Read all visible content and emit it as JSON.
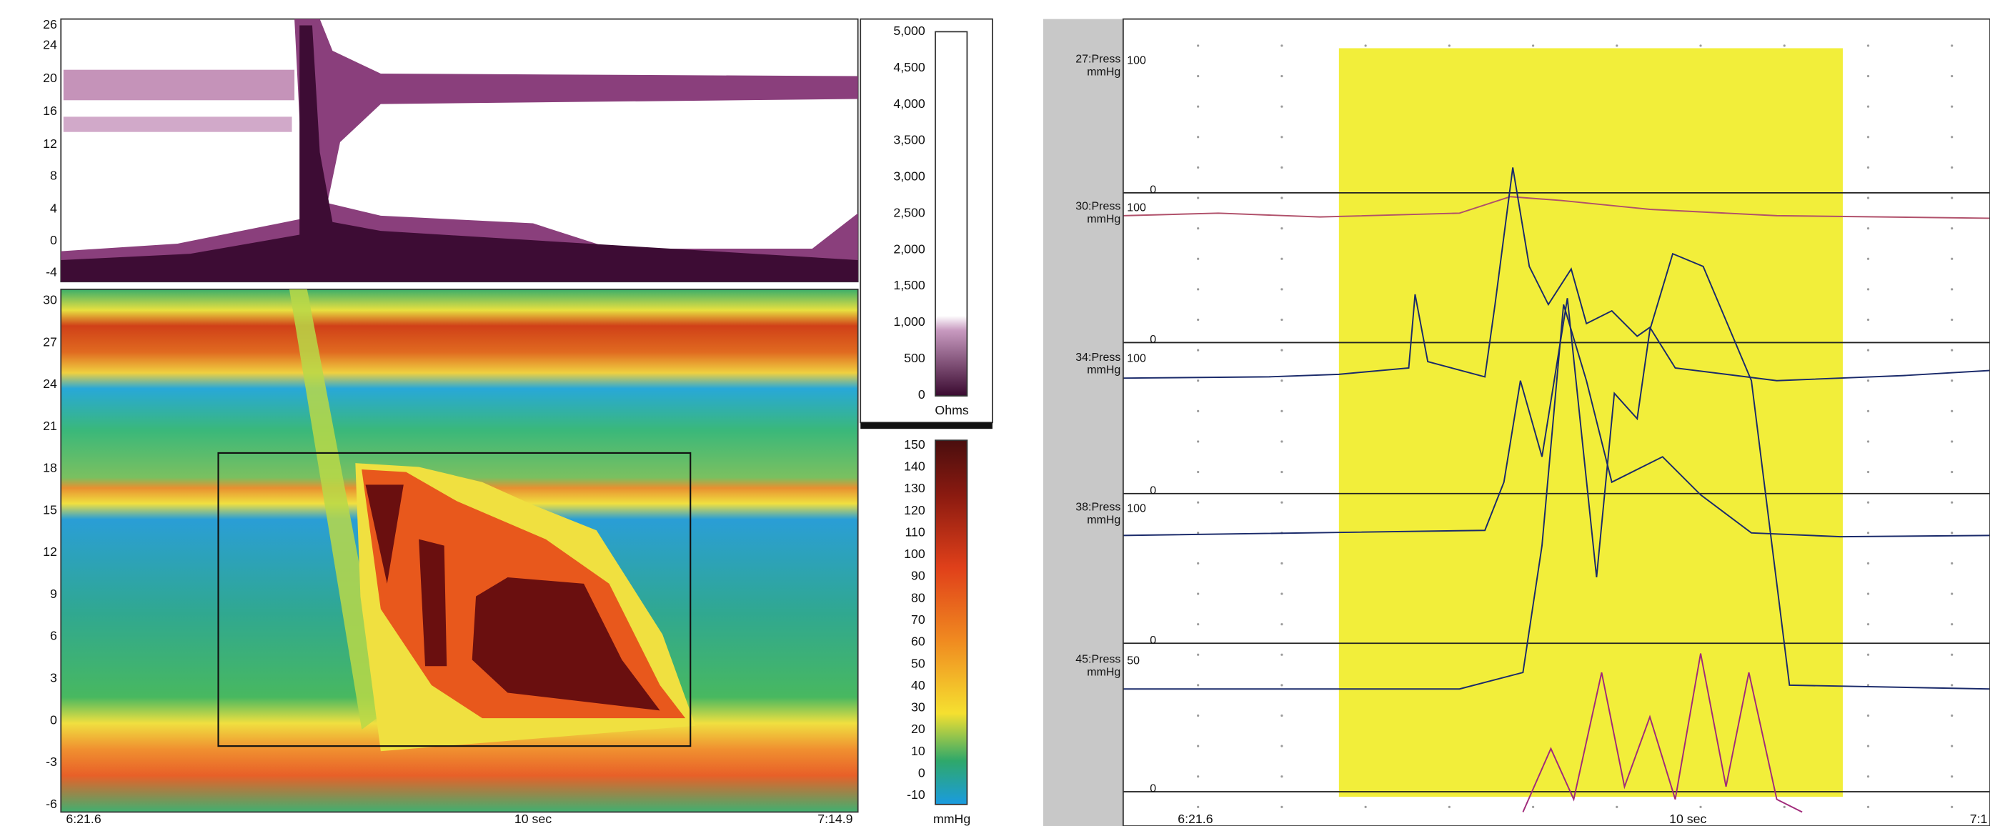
{
  "left_panel": {
    "impedance_axis": [
      "26",
      "24",
      "20",
      "16",
      "12",
      "8",
      "4",
      "0",
      "-4"
    ],
    "pressure_axis": [
      "30",
      "27",
      "24",
      "21",
      "18",
      "15",
      "12",
      "9",
      "6",
      "3",
      "0",
      "-3",
      "-6"
    ],
    "time_axis": [
      "6:21.6",
      "10 sec",
      "7:14.9"
    ]
  },
  "impedance_scale": {
    "ticks": [
      "5,000",
      "4,500",
      "4,000",
      "3,500",
      "3,000",
      "2,500",
      "2,000",
      "1,500",
      "1,000",
      "500",
      "0"
    ],
    "unit": "Ohms"
  },
  "pressure_scale": {
    "ticks": [
      "150",
      "140",
      "130",
      "120",
      "110",
      "100",
      "90",
      "80",
      "70",
      "60",
      "50",
      "40",
      "30",
      "20",
      "10",
      "0",
      "-10"
    ],
    "unit": "mmHg"
  },
  "right_panel": {
    "channels": [
      {
        "name": "27:Press",
        "unit": "mmHg",
        "top": "100",
        "zero": "0"
      },
      {
        "name": "30:Press",
        "unit": "mmHg",
        "top": "100",
        "zero": "0"
      },
      {
        "name": "34:Press",
        "unit": "mmHg",
        "top": "100",
        "zero": "0"
      },
      {
        "name": "38:Press",
        "unit": "mmHg",
        "top": "100",
        "zero": "0"
      },
      {
        "name": "45:Press",
        "unit": "mmHg",
        "top": "50",
        "zero": "0"
      }
    ],
    "time_axis": [
      "6:21.6",
      "10 sec",
      "7:1"
    ]
  }
}
